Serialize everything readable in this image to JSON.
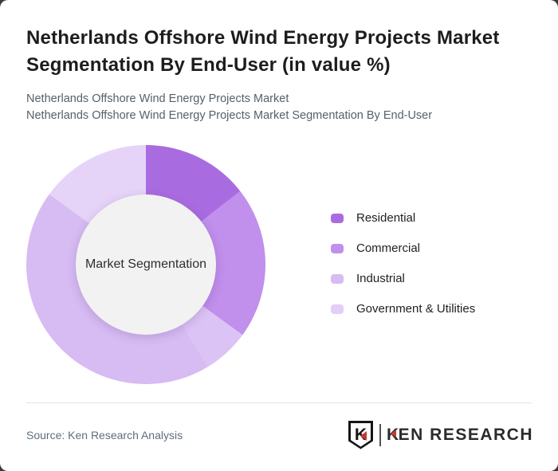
{
  "page": {
    "background_color": "#3c3c3c",
    "card_background": "#ffffff"
  },
  "header": {
    "title": "Netherlands Offshore Wind Energy Projects Market Segmentation By End-User (in value %)",
    "subtitle_line1": "Netherlands Offshore Wind Energy Projects Market",
    "subtitle_line2": "Netherlands Offshore Wind Energy Projects Market Segmentation By End-User"
  },
  "chart_data": {
    "type": "pie",
    "variant": "donut",
    "title": "Netherlands Offshore Wind Energy Projects Market Segmentation By End-User (in value %)",
    "center_label": "Market Segmentation",
    "values_labeled_on_chart": false,
    "legend_position": "right",
    "legend": [
      {
        "label": "Residential",
        "color": "#a96ce0"
      },
      {
        "label": "Commercial",
        "color": "#c18fec"
      },
      {
        "label": "Industrial",
        "color": "#d7bbf3"
      },
      {
        "label": "Government & Utilities",
        "color": "#e3cef7"
      }
    ],
    "slices": [
      {
        "label": "Residential",
        "start_deg": 0,
        "end_deg": 52,
        "percent_est": 14.4,
        "color": "#a96ce0"
      },
      {
        "label": "Commercial",
        "start_deg": 52,
        "end_deg": 126,
        "percent_est": 20.6,
        "color": "#c18fec"
      },
      {
        "label": "Government & Utilities",
        "start_deg": 126,
        "end_deg": 149,
        "percent_est": 6.4,
        "color": "#dcc3f5"
      },
      {
        "label": "Industrial",
        "start_deg": 149,
        "end_deg": 306,
        "percent_est": 43.6,
        "color": "#d7bbf3"
      },
      {
        "label": "Government & Utilities",
        "start_deg": 306,
        "end_deg": 360,
        "percent_est": 15.0,
        "color": "#e6d4f8"
      }
    ]
  },
  "footer": {
    "source": "Source: Ken Research Analysis",
    "logo": {
      "badge_letter": "K",
      "brand_first_letter": "K",
      "brand_rest": "EN RESEARCH",
      "accent_color": "#c23b33"
    }
  }
}
